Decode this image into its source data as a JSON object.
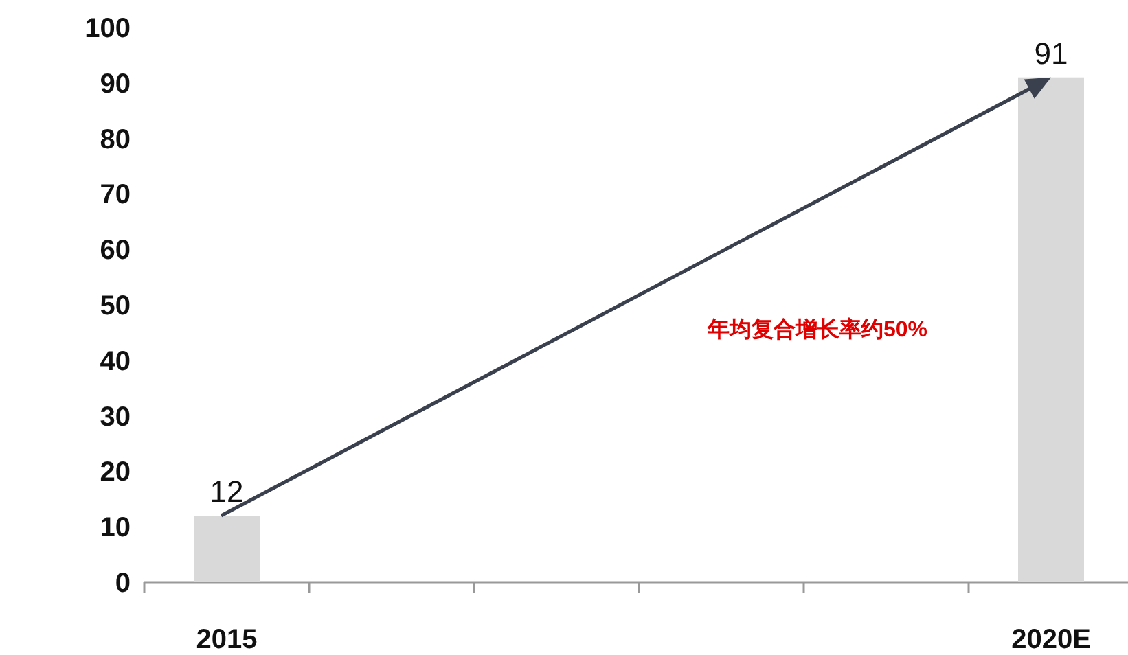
{
  "chart_data": {
    "type": "bar",
    "categories": [
      "2015",
      null,
      null,
      null,
      null,
      "2020E"
    ],
    "values": [
      12,
      null,
      null,
      null,
      null,
      91
    ],
    "color": "#d9d9d9",
    "ylim": [
      0,
      100
    ],
    "yticks": [
      0,
      10,
      20,
      30,
      40,
      50,
      60,
      70,
      80,
      90,
      100
    ],
    "data_labels": true,
    "annotations": [
      "年均复合增长率约50%"
    ]
  }
}
